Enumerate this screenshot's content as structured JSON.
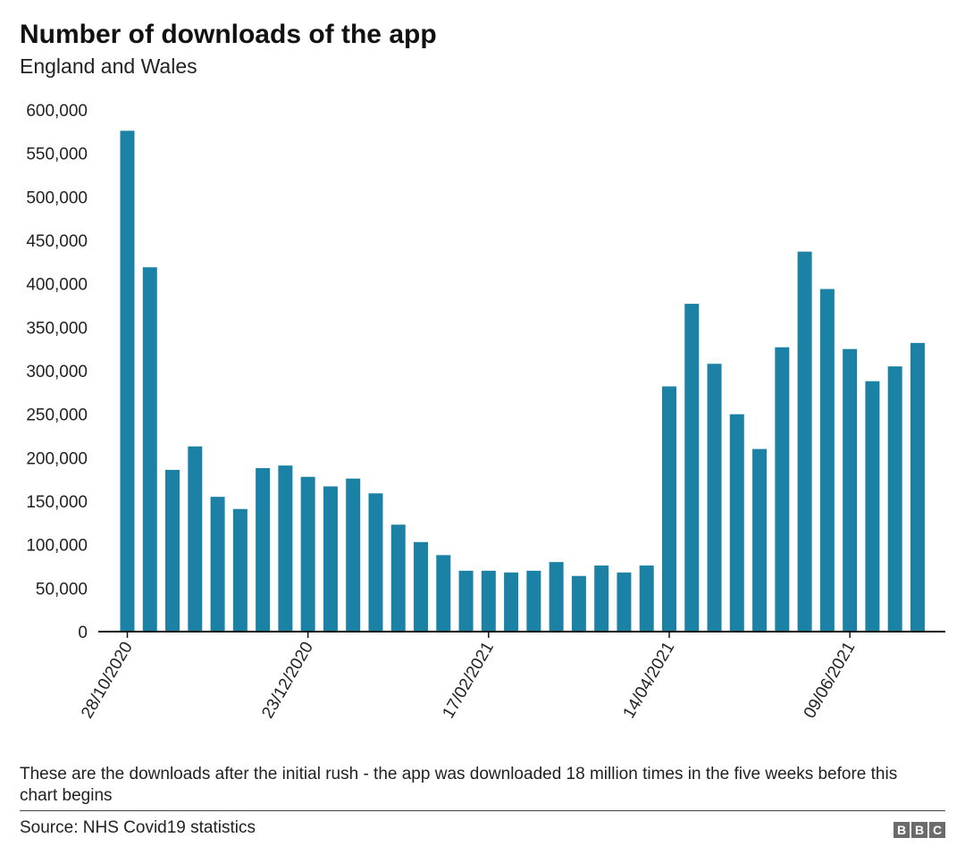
{
  "chart_data": {
    "type": "bar",
    "title": "Number of downloads of the app",
    "subtitle": "England and Wales",
    "xlabel": "",
    "ylabel": "",
    "ylim": [
      0,
      600000
    ],
    "yticks": [
      0,
      50000,
      100000,
      150000,
      200000,
      250000,
      300000,
      350000,
      400000,
      450000,
      500000,
      550000,
      600000
    ],
    "ytick_labels": [
      "0",
      "50,000",
      "100,000",
      "150,000",
      "200,000",
      "250,000",
      "300,000",
      "350,000",
      "400,000",
      "450,000",
      "500,000",
      "550,000",
      "600,000"
    ],
    "xtick_labels": [
      {
        "index": 0,
        "label": "28/10/2020"
      },
      {
        "index": 8,
        "label": "23/12/2020"
      },
      {
        "index": 16,
        "label": "17/02/2021"
      },
      {
        "index": 24,
        "label": "14/04/2021"
      },
      {
        "index": 32,
        "label": "09/06/2021"
      }
    ],
    "series": [
      {
        "name": "Downloads",
        "color": "#1b82a6",
        "values": [
          576000,
          419000,
          186000,
          213000,
          155000,
          141000,
          188000,
          191000,
          178000,
          167000,
          176000,
          159000,
          123000,
          103000,
          88000,
          70000,
          70000,
          68000,
          70000,
          80000,
          64000,
          76000,
          68000,
          76000,
          282000,
          377000,
          308000,
          250000,
          210000,
          327000,
          437000,
          394000,
          325000,
          288000,
          305000,
          332000
        ]
      }
    ],
    "grid": false,
    "legend": "none"
  },
  "footer": {
    "note": "These are the downloads after the initial rush - the app was downloaded 18 million times in the five weeks before this chart begins",
    "source": "Source: NHS Covid19 statistics",
    "logo_letters": [
      "B",
      "B",
      "C"
    ]
  }
}
